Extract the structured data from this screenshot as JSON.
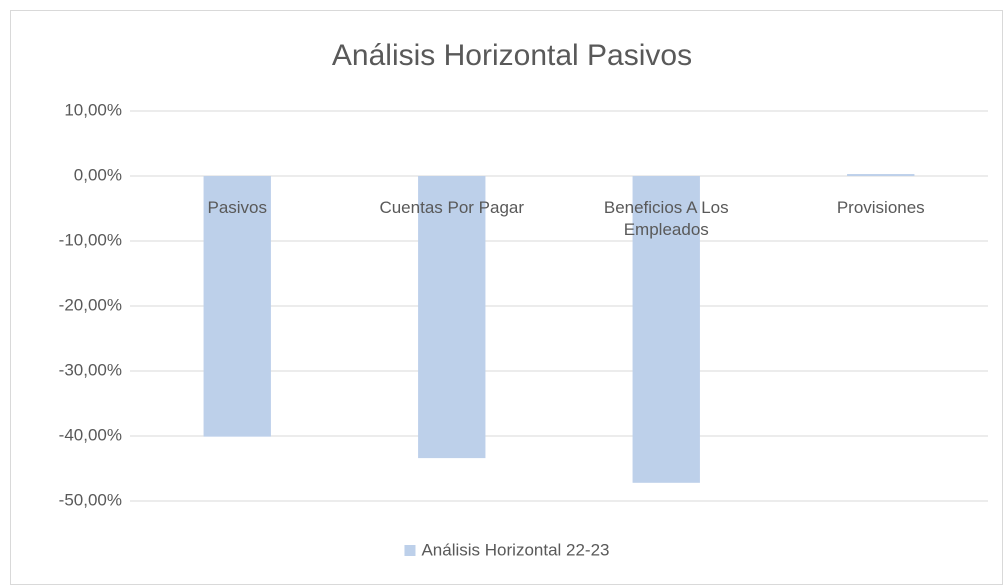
{
  "chart_data": {
    "type": "bar",
    "title": "Análisis Horizontal Pasivos",
    "categories": [
      "Pasivos",
      "Cuentas Por Pagar",
      "Beneficios A Los Empleados",
      "Provisiones"
    ],
    "series": [
      {
        "name": "Análisis Horizontal 22-23",
        "color": "#bdd0ea",
        "values": [
          -40.1,
          -43.4,
          -47.2,
          0.3
        ]
      }
    ],
    "ylim": [
      -50,
      10
    ],
    "yticks": [
      {
        "value": 10,
        "label": "10,00%"
      },
      {
        "value": 0,
        "label": "0,00%"
      },
      {
        "value": -10,
        "label": "-10,00%"
      },
      {
        "value": -20,
        "label": "-20,00%"
      },
      {
        "value": -30,
        "label": "-30,00%"
      },
      {
        "value": -40,
        "label": "-40,00%"
      },
      {
        "value": -50,
        "label": "-50,00%"
      }
    ],
    "grid": true,
    "legend": "bottom"
  }
}
